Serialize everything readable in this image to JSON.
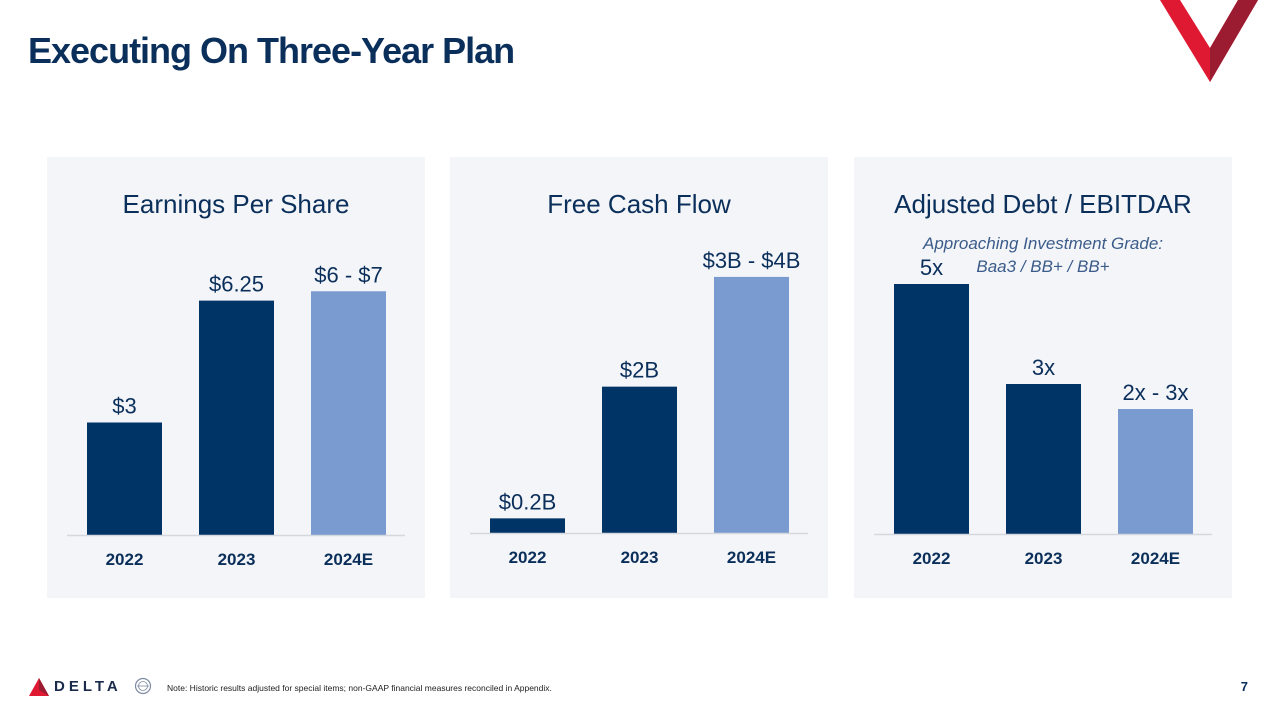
{
  "colors": {
    "navy": "#0b2f5b",
    "dark_bar": "#003366",
    "light_bar": "#7a9bcf",
    "red": "#e01933",
    "dark_red": "#9b1b30",
    "panel_bg": "#f4f5f8"
  },
  "slide": {
    "title": "Executing On Three-Year Plan"
  },
  "footer": {
    "brand": "DELTA",
    "note": "Note: Historic results adjusted for special items; non-GAAP financial measures reconciled in Appendix.",
    "page_number": "7"
  },
  "chart_data": [
    {
      "type": "bar",
      "title": "Earnings Per Share",
      "categories": [
        "2022",
        "2023",
        "2024E"
      ],
      "values": [
        3,
        6.25,
        6.5
      ],
      "data_labels": [
        "$3",
        "$6.25",
        "$6 - $7"
      ],
      "projected": [
        false,
        false,
        true
      ],
      "ylim": [
        0,
        8
      ]
    },
    {
      "type": "bar",
      "title": "Free Cash Flow",
      "categories": [
        "2022",
        "2023",
        "2024E"
      ],
      "values": [
        0.2,
        2,
        3.5
      ],
      "data_labels": [
        "$0.2B",
        "$2B",
        "$3B - $4B"
      ],
      "projected": [
        false,
        false,
        true
      ],
      "ylim": [
        0,
        4.1
      ]
    },
    {
      "type": "bar",
      "title": "Adjusted Debt / EBITDAR",
      "subtitle": [
        "Approaching Investment Grade:",
        "Baa3 / BB+ / BB+"
      ],
      "categories": [
        "2022",
        "2023",
        "2024E"
      ],
      "values": [
        5,
        3,
        2.5
      ],
      "data_labels": [
        "5x",
        "3x",
        "2x - 3x"
      ],
      "projected": [
        false,
        false,
        true
      ],
      "ylim": [
        0,
        6
      ]
    }
  ]
}
